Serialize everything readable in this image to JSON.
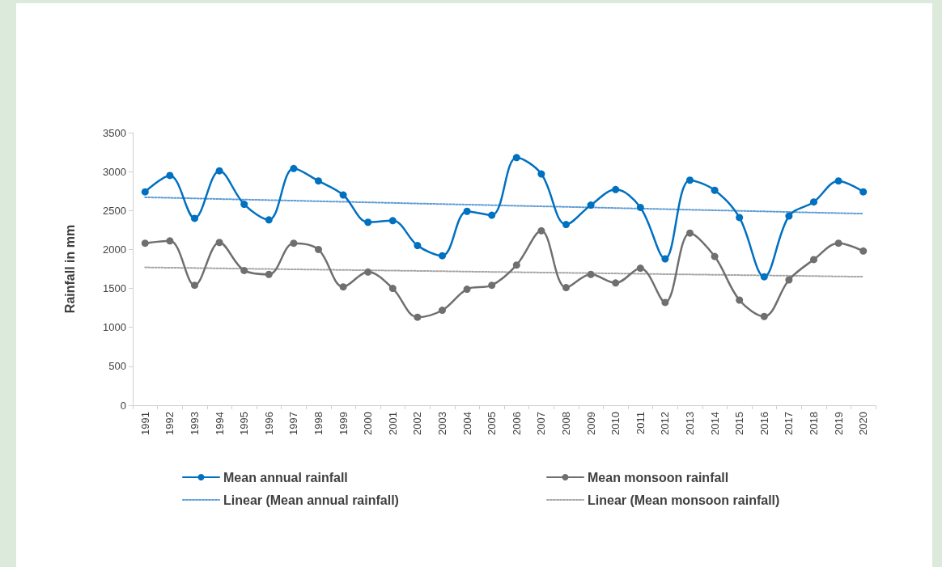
{
  "chart_data": {
    "type": "line",
    "ylabel": "Rainfall in mm",
    "categories": [
      "1991",
      "1992",
      "1993",
      "1994",
      "1995",
      "1996",
      "1997",
      "1998",
      "1999",
      "2000",
      "2001",
      "2002",
      "2003",
      "2004",
      "2005",
      "2006",
      "2007",
      "2008",
      "2009",
      "2010",
      "2011",
      "2012",
      "2013",
      "2014",
      "2015",
      "2016",
      "2017",
      "2018",
      "2019",
      "2020"
    ],
    "series": [
      {
        "name": "Mean annual rainfall",
        "color": "#0070c0",
        "marker": "circle",
        "line_style": "solid",
        "values": [
          2740,
          2950,
          2400,
          3010,
          2580,
          2380,
          3040,
          2880,
          2700,
          2350,
          2370,
          2050,
          1920,
          2490,
          2440,
          3180,
          2970,
          2320,
          2570,
          2770,
          2540,
          1880,
          2890,
          2760,
          2410,
          1650,
          2430,
          2610,
          2880,
          2740
        ]
      },
      {
        "name": "Mean monsoon rainfall",
        "color": "#6f6f6f",
        "marker": "circle",
        "line_style": "solid",
        "values": [
          2080,
          2110,
          1540,
          2090,
          1730,
          1680,
          2080,
          2000,
          1520,
          1710,
          1500,
          1130,
          1220,
          1490,
          1540,
          1800,
          2240,
          1510,
          1680,
          1570,
          1760,
          1320,
          2210,
          1910,
          1350,
          1140,
          1610,
          1870,
          2080,
          1980
        ]
      },
      {
        "name": "Linear (Mean annual rainfall)",
        "color": "#5b9bd5",
        "marker": "none",
        "line_style": "dotted",
        "values": [
          2670,
          2663,
          2656,
          2648,
          2641,
          2634,
          2627,
          2619,
          2612,
          2605,
          2598,
          2590,
          2583,
          2576,
          2569,
          2561,
          2554,
          2547,
          2540,
          2532,
          2525,
          2518,
          2510,
          2503,
          2496,
          2489,
          2481,
          2474,
          2467,
          2460
        ]
      },
      {
        "name": "Linear (Mean monsoon rainfall)",
        "color": "#a5a5a5",
        "marker": "none",
        "line_style": "dotted",
        "values": [
          1770,
          1766,
          1762,
          1758,
          1753,
          1749,
          1745,
          1741,
          1737,
          1733,
          1729,
          1725,
          1721,
          1716,
          1712,
          1708,
          1704,
          1700,
          1696,
          1692,
          1688,
          1683,
          1679,
          1675,
          1671,
          1667,
          1663,
          1659,
          1654,
          1650
        ]
      }
    ],
    "ylim": [
      0,
      3500
    ],
    "yticks": [
      0,
      500,
      1000,
      1500,
      2000,
      2500,
      3000,
      3500
    ],
    "grid": false,
    "legend": "bottom"
  }
}
